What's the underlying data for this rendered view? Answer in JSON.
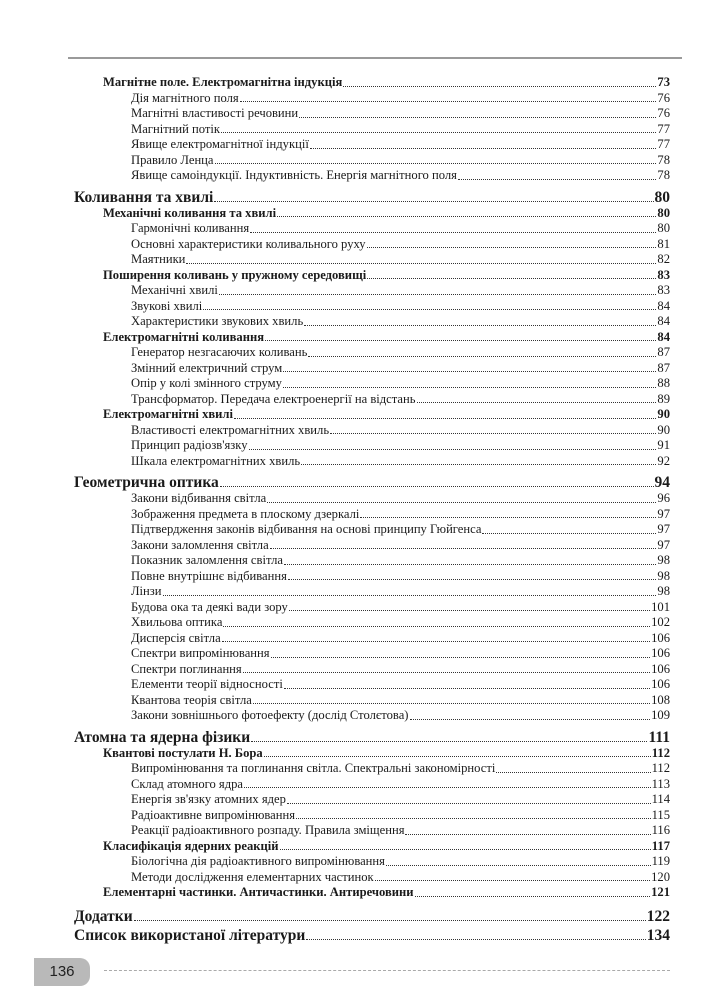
{
  "page_number": "136",
  "entries": [
    {
      "level": 2,
      "title": "Магнітне поле. Електромагнітна індукція",
      "page": "73"
    },
    {
      "level": 3,
      "title": "Дія магнітного поля",
      "page": "76"
    },
    {
      "level": 3,
      "title": "Магнітні властивості речовини",
      "page": "76"
    },
    {
      "level": 3,
      "title": "Магнітний потік",
      "page": "77"
    },
    {
      "level": 3,
      "title": "Явище електромагнітної індукції",
      "page": "77"
    },
    {
      "level": 3,
      "title": "Правило Ленца",
      "page": "78"
    },
    {
      "level": 3,
      "title": "Явище самоіндукції. Індуктивність. Енергія магнітного поля",
      "page": "78"
    },
    {
      "level": 1,
      "title": "Коливання та хвилі",
      "page": "80"
    },
    {
      "level": 2,
      "title": "Механічні коливання та хвилі",
      "page": "80"
    },
    {
      "level": 3,
      "title": "Гармонічні коливання",
      "page": "80"
    },
    {
      "level": 3,
      "title": "Основні характеристики коливального руху",
      "page": "81"
    },
    {
      "level": 3,
      "title": "Маятники",
      "page": "82"
    },
    {
      "level": 2,
      "title": "Поширення коливань у пружному середовищі",
      "page": "83"
    },
    {
      "level": 3,
      "title": "Механічні хвилі",
      "page": "83"
    },
    {
      "level": 3,
      "title": "Звукові хвилі",
      "page": "84"
    },
    {
      "level": 3,
      "title": "Характеристики звукових хвиль",
      "page": "84"
    },
    {
      "level": 2,
      "title": "Електромагнітні коливання",
      "page": "84"
    },
    {
      "level": 3,
      "title": "Генератор незгасаючих коливань",
      "page": "87"
    },
    {
      "level": 3,
      "title": "Змінний електричний струм",
      "page": "87"
    },
    {
      "level": 3,
      "title": "Опір у колі змінного струму",
      "page": "88"
    },
    {
      "level": 3,
      "title": "Трансформатор. Передача електроенергії на відстань",
      "page": "89"
    },
    {
      "level": 2,
      "title": "Електромагнітні хвилі",
      "page": "90"
    },
    {
      "level": 3,
      "title": "Властивості електромагнітних хвиль",
      "page": "90"
    },
    {
      "level": 3,
      "title": "Принцип радіозв'язку",
      "page": "91"
    },
    {
      "level": 3,
      "title": "Шкала електромагнітних хвиль",
      "page": "92"
    },
    {
      "level": 1,
      "title": "Геометрична оптика",
      "page": "94"
    },
    {
      "level": 3,
      "title": "Закони відбивання світла",
      "page": "96"
    },
    {
      "level": 3,
      "title": "Зображення предмета в плоскому дзеркалі",
      "page": "97"
    },
    {
      "level": 3,
      "title": "Підтвердження законів відбивання на основі принципу Гюйгенса",
      "page": "97"
    },
    {
      "level": 3,
      "title": "Закони заломлення світла",
      "page": "97"
    },
    {
      "level": 3,
      "title": "Показник заломлення світла",
      "page": "98"
    },
    {
      "level": 3,
      "title": "Повне внутрішнє відбивання",
      "page": "98"
    },
    {
      "level": 3,
      "title": "Лінзи",
      "page": "98"
    },
    {
      "level": 3,
      "title": "Будова ока та деякі вади зору",
      "page": "101"
    },
    {
      "level": 3,
      "title": "Хвильова оптика",
      "page": "102"
    },
    {
      "level": 3,
      "title": "Дисперсія світла",
      "page": "106"
    },
    {
      "level": 3,
      "title": "Спектри випромінювання",
      "page": "106"
    },
    {
      "level": 3,
      "title": "Спектри поглинання",
      "page": "106"
    },
    {
      "level": 3,
      "title": "Елементи теорії відносності",
      "page": "106"
    },
    {
      "level": 3,
      "title": "Квантова теорія світла",
      "page": "108"
    },
    {
      "level": 3,
      "title": "Закони зовнішнього фотоефекту (дослід Столєтова)",
      "page": "109"
    },
    {
      "level": 1,
      "title": "Атомна та ядерна фізики",
      "page": "111"
    },
    {
      "level": 2,
      "title": "Квантові постулати Н. Бора",
      "page": "112"
    },
    {
      "level": 3,
      "title": "Випромінювання та поглинання світла. Спектральні закономірності",
      "page": "112"
    },
    {
      "level": 3,
      "title": "Склад атомного ядра",
      "page": "113"
    },
    {
      "level": 3,
      "title": "Енергія зв'язку атомних ядер",
      "page": "114"
    },
    {
      "level": 3,
      "title": "Радіоактивне випромінювання",
      "page": "115"
    },
    {
      "level": 3,
      "title": "Реакції радіоактивного розпаду. Правила зміщення",
      "page": "116"
    },
    {
      "level": 2,
      "title": "Класифікація ядерних реакцій",
      "page": "117"
    },
    {
      "level": 3,
      "title": "Біологічна дія радіоактивного випромінювання",
      "page": "119"
    },
    {
      "level": 3,
      "title": "Методи дослідження елементарних частинок",
      "page": "120"
    },
    {
      "level": 2,
      "title": "Елементарні частинки. Античастинки. Антиречовини",
      "page": "121"
    },
    {
      "level": 1,
      "title": "Додатки",
      "page": "122"
    },
    {
      "level": 1,
      "title": "Список використаної літератури",
      "page": "134"
    }
  ]
}
